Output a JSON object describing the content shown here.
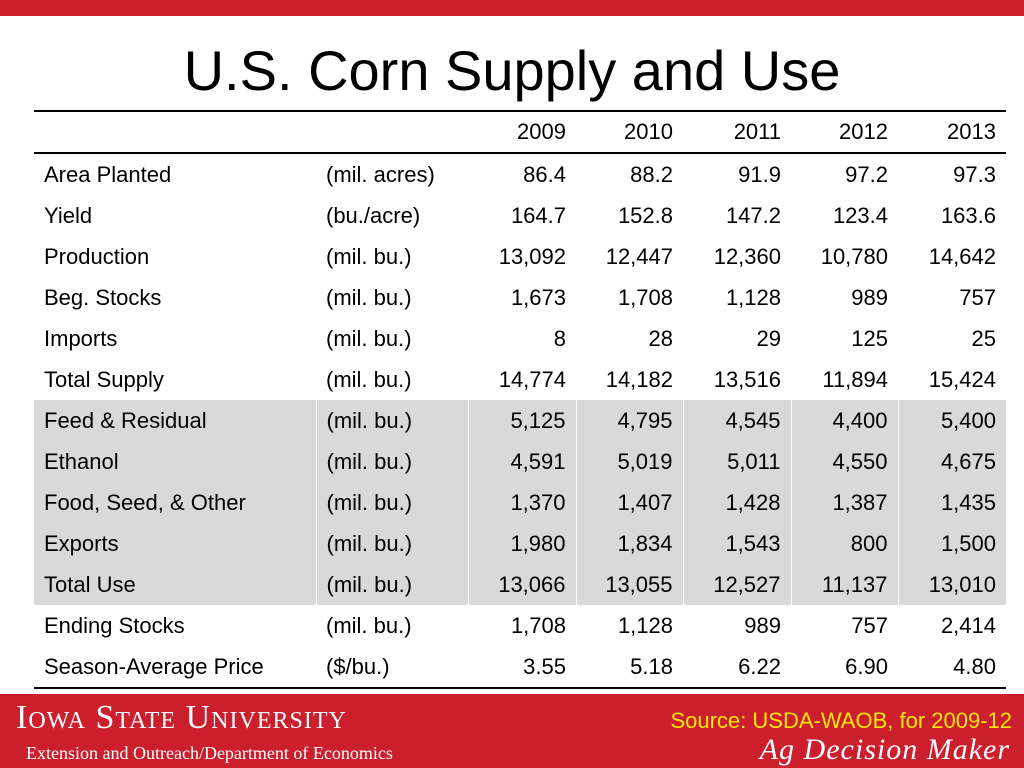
{
  "title": "U.S. Corn Supply and Use",
  "table": {
    "years": [
      "2009",
      "2010",
      "2011",
      "2012",
      "2013"
    ],
    "rows": [
      {
        "label": "Area Planted",
        "unit": "(mil. acres)",
        "values": [
          "86.4",
          "88.2",
          "91.9",
          "97.2",
          "97.3"
        ],
        "shaded": false
      },
      {
        "label": "Yield",
        "unit": "(bu./acre)",
        "values": [
          "164.7",
          "152.8",
          "147.2",
          "123.4",
          "163.6"
        ],
        "shaded": false
      },
      {
        "label": "Production",
        "unit": "(mil. bu.)",
        "values": [
          "13,092",
          "12,447",
          "12,360",
          "10,780",
          "14,642"
        ],
        "shaded": false
      },
      {
        "label": "Beg. Stocks",
        "unit": "(mil. bu.)",
        "values": [
          "1,673",
          "1,708",
          "1,128",
          "989",
          "757"
        ],
        "shaded": false
      },
      {
        "label": "Imports",
        "unit": "(mil. bu.)",
        "values": [
          "8",
          "28",
          "29",
          "125",
          "25"
        ],
        "shaded": false
      },
      {
        "label": "Total Supply",
        "unit": "(mil. bu.)",
        "values": [
          "14,774",
          "14,182",
          "13,516",
          "11,894",
          "15,424"
        ],
        "shaded": false
      },
      {
        "label": "Feed & Residual",
        "unit": "(mil. bu.)",
        "values": [
          "5,125",
          "4,795",
          "4,545",
          "4,400",
          "5,400"
        ],
        "shaded": true
      },
      {
        "label": "Ethanol",
        "unit": "(mil. bu.)",
        "values": [
          "4,591",
          "5,019",
          "5,011",
          "4,550",
          "4,675"
        ],
        "shaded": true
      },
      {
        "label": "Food, Seed, & Other",
        "unit": "(mil. bu.)",
        "values": [
          "1,370",
          "1,407",
          "1,428",
          "1,387",
          "1,435"
        ],
        "shaded": true
      },
      {
        "label": "Exports",
        "unit": "(mil. bu.)",
        "values": [
          "1,980",
          "1,834",
          "1,543",
          "800",
          "1,500"
        ],
        "shaded": true
      },
      {
        "label": "Total Use",
        "unit": "(mil. bu.)",
        "values": [
          "13,066",
          "13,055",
          "12,527",
          "11,137",
          "13,010"
        ],
        "shaded": true
      },
      {
        "label": "Ending Stocks",
        "unit": "(mil. bu.)",
        "values": [
          "1,708",
          "1,128",
          "989",
          "757",
          "2,414"
        ],
        "shaded": false
      },
      {
        "label": "Season-Average Price",
        "unit": "($/bu.)",
        "values": [
          "3.55",
          "5.18",
          "6.22",
          "6.90",
          "4.80"
        ],
        "shaded": false
      }
    ]
  },
  "footer": {
    "university": "Iowa State University",
    "department": "Extension and Outreach/Department of Economics",
    "source": "Source: USDA-WAOB, for 2009-12",
    "brand": "Ag Decision Maker"
  },
  "colors": {
    "accent": "#cc1f2d",
    "source_text": "#ffe600",
    "shaded_row": "#d9d9d9"
  }
}
